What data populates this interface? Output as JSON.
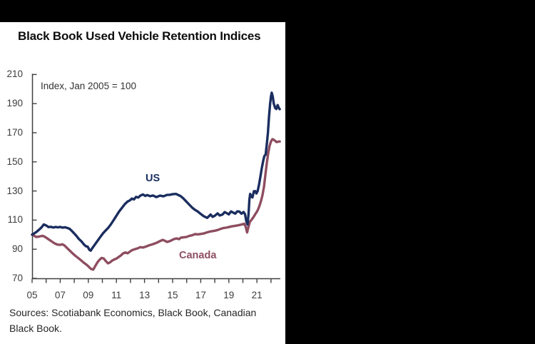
{
  "header": {
    "title": "Black Book Used Vehicle Retention Indices"
  },
  "footer": {
    "sources": "Sources: Scotiabank Economics, Black Book, Canadian Black Book."
  },
  "colors": {
    "us_line": "#1a2d5f",
    "canada_line": "#8e4d60",
    "axis": "#404040",
    "tick_text": "#3d3d3d"
  },
  "chart_data": {
    "type": "line",
    "title": "Black Book Used Vehicle Retention Indices",
    "note": "Index, Jan 2005 = 100",
    "xlabel": "",
    "ylabel": "",
    "ylim": [
      70,
      210
    ],
    "xlim_years": [
      2005,
      2022.7
    ],
    "grid": false,
    "legend_position": "inline-labels",
    "y_ticks": [
      70,
      90,
      110,
      130,
      150,
      170,
      190,
      210
    ],
    "x_tick_labels": [
      "05",
      "07",
      "09",
      "11",
      "13",
      "15",
      "17",
      "19",
      "21"
    ],
    "x_tick_years": [
      2005,
      2007,
      2009,
      2011,
      2013,
      2015,
      2017,
      2019,
      2021
    ],
    "x_minor_tick_years": [
      2005,
      2006,
      2007,
      2008,
      2009,
      2010,
      2011,
      2012,
      2013,
      2014,
      2015,
      2016,
      2017,
      2018,
      2019,
      2020,
      2021,
      2022
    ],
    "series": [
      {
        "name": "Canada",
        "color": "#8e4d60",
        "label_pos": {
          "x": 251,
          "y": 350
        },
        "points": [
          [
            2005.0,
            100
          ],
          [
            2005.15,
            99.2
          ],
          [
            2005.3,
            98.4
          ],
          [
            2005.45,
            98.6
          ],
          [
            2005.6,
            98.9
          ],
          [
            2005.75,
            99.2
          ],
          [
            2005.9,
            98.6
          ],
          [
            2006.05,
            97.6
          ],
          [
            2006.2,
            96.6
          ],
          [
            2006.4,
            95.3
          ],
          [
            2006.6,
            94.0
          ],
          [
            2006.8,
            93.2
          ],
          [
            2007.0,
            93.0
          ],
          [
            2007.15,
            93.4
          ],
          [
            2007.3,
            92.6
          ],
          [
            2007.45,
            91.2
          ],
          [
            2007.6,
            89.8
          ],
          [
            2007.75,
            88.4
          ],
          [
            2007.9,
            87.0
          ],
          [
            2008.1,
            85.3
          ],
          [
            2008.3,
            83.8
          ],
          [
            2008.5,
            82.2
          ],
          [
            2008.7,
            80.6
          ],
          [
            2008.9,
            79.2
          ],
          [
            2009.05,
            77.8
          ],
          [
            2009.2,
            76.4
          ],
          [
            2009.35,
            76.0
          ],
          [
            2009.5,
            78.5
          ],
          [
            2009.65,
            81.0
          ],
          [
            2009.8,
            82.8
          ],
          [
            2009.95,
            84.0
          ],
          [
            2010.1,
            83.6
          ],
          [
            2010.25,
            81.8
          ],
          [
            2010.4,
            80.3
          ],
          [
            2010.55,
            81.0
          ],
          [
            2010.7,
            82.2
          ],
          [
            2010.85,
            83.0
          ],
          [
            2011.0,
            83.6
          ],
          [
            2011.15,
            84.6
          ],
          [
            2011.3,
            85.6
          ],
          [
            2011.5,
            87.3
          ],
          [
            2011.65,
            87.8
          ],
          [
            2011.8,
            87.2
          ],
          [
            2011.95,
            88.3
          ],
          [
            2012.1,
            89.3
          ],
          [
            2012.3,
            90.0
          ],
          [
            2012.5,
            90.6
          ],
          [
            2012.7,
            91.4
          ],
          [
            2012.9,
            91.2
          ],
          [
            2013.1,
            91.8
          ],
          [
            2013.3,
            92.6
          ],
          [
            2013.5,
            93.2
          ],
          [
            2013.7,
            93.8
          ],
          [
            2013.9,
            94.6
          ],
          [
            2014.1,
            95.6
          ],
          [
            2014.3,
            96.4
          ],
          [
            2014.45,
            95.8
          ],
          [
            2014.6,
            95.0
          ],
          [
            2014.75,
            95.4
          ],
          [
            2014.9,
            96.0
          ],
          [
            2015.1,
            97.0
          ],
          [
            2015.3,
            97.4
          ],
          [
            2015.45,
            96.9
          ],
          [
            2015.6,
            98.0
          ],
          [
            2015.8,
            98.2
          ],
          [
            2016.0,
            98.5
          ],
          [
            2016.2,
            99.2
          ],
          [
            2016.4,
            99.6
          ],
          [
            2016.6,
            100.4
          ],
          [
            2016.8,
            100.2
          ],
          [
            2017.0,
            100.5
          ],
          [
            2017.2,
            100.8
          ],
          [
            2017.4,
            101.4
          ],
          [
            2017.6,
            102.0
          ],
          [
            2017.8,
            102.4
          ],
          [
            2018.0,
            102.7
          ],
          [
            2018.2,
            103.2
          ],
          [
            2018.4,
            103.9
          ],
          [
            2018.6,
            104.5
          ],
          [
            2018.8,
            104.8
          ],
          [
            2019.0,
            105.2
          ],
          [
            2019.2,
            105.7
          ],
          [
            2019.4,
            106.0
          ],
          [
            2019.6,
            106.3
          ],
          [
            2019.8,
            106.7
          ],
          [
            2019.95,
            107.1
          ],
          [
            2020.1,
            107.5
          ],
          [
            2020.2,
            105.5
          ],
          [
            2020.3,
            101.5
          ],
          [
            2020.4,
            105.5
          ],
          [
            2020.5,
            108.8
          ],
          [
            2020.62,
            110.3
          ],
          [
            2020.75,
            112.0
          ],
          [
            2020.88,
            114.0
          ],
          [
            2021.0,
            115.8
          ],
          [
            2021.1,
            117.8
          ],
          [
            2021.2,
            120.3
          ],
          [
            2021.3,
            123.5
          ],
          [
            2021.4,
            127.5
          ],
          [
            2021.5,
            133.0
          ],
          [
            2021.6,
            141.0
          ],
          [
            2021.7,
            149.0
          ],
          [
            2021.8,
            156.0
          ],
          [
            2021.9,
            161.0
          ],
          [
            2022.0,
            164.0
          ],
          [
            2022.1,
            165.6
          ],
          [
            2022.2,
            165.2
          ],
          [
            2022.3,
            164.4
          ],
          [
            2022.4,
            163.6
          ],
          [
            2022.5,
            163.8
          ],
          [
            2022.62,
            164.0
          ]
        ]
      },
      {
        "name": "US",
        "color": "#1a2d5f",
        "label_pos": {
          "x": 204,
          "y": 242
        },
        "points": [
          [
            2005.0,
            100
          ],
          [
            2005.17,
            101
          ],
          [
            2005.33,
            102
          ],
          [
            2005.5,
            103.5
          ],
          [
            2005.67,
            105
          ],
          [
            2005.83,
            107
          ],
          [
            2006.0,
            106.3
          ],
          [
            2006.17,
            105.2
          ],
          [
            2006.33,
            105.4
          ],
          [
            2006.5,
            104.9
          ],
          [
            2006.67,
            105.3
          ],
          [
            2006.83,
            105.0
          ],
          [
            2007.0,
            105.3
          ],
          [
            2007.17,
            104.8
          ],
          [
            2007.33,
            105.1
          ],
          [
            2007.5,
            104.6
          ],
          [
            2007.67,
            104.0
          ],
          [
            2007.83,
            102.5
          ],
          [
            2008.0,
            100.8
          ],
          [
            2008.17,
            99.0
          ],
          [
            2008.33,
            97.0
          ],
          [
            2008.5,
            95.5
          ],
          [
            2008.67,
            93.5
          ],
          [
            2008.83,
            92.0
          ],
          [
            2008.95,
            91.8
          ],
          [
            2009.08,
            89.5
          ],
          [
            2009.17,
            89.0
          ],
          [
            2009.3,
            91.0
          ],
          [
            2009.45,
            93.0
          ],
          [
            2009.6,
            95.0
          ],
          [
            2009.75,
            97.0
          ],
          [
            2009.9,
            99.0
          ],
          [
            2010.05,
            101.0
          ],
          [
            2010.2,
            102.5
          ],
          [
            2010.4,
            104.5
          ],
          [
            2010.6,
            107.0
          ],
          [
            2010.8,
            110.0
          ],
          [
            2011.0,
            113.0
          ],
          [
            2011.2,
            116.0
          ],
          [
            2011.4,
            118.5
          ],
          [
            2011.6,
            121.0
          ],
          [
            2011.8,
            122.8
          ],
          [
            2011.95,
            123.5
          ],
          [
            2012.1,
            124.8
          ],
          [
            2012.25,
            124.2
          ],
          [
            2012.4,
            126.0
          ],
          [
            2012.55,
            125.5
          ],
          [
            2012.7,
            126.8
          ],
          [
            2012.9,
            127.6
          ],
          [
            2013.05,
            126.6
          ],
          [
            2013.2,
            127.2
          ],
          [
            2013.4,
            126.4
          ],
          [
            2013.6,
            126.9
          ],
          [
            2013.85,
            125.8
          ],
          [
            2014.1,
            126.8
          ],
          [
            2014.35,
            126.3
          ],
          [
            2014.6,
            127.3
          ],
          [
            2014.8,
            127.4
          ],
          [
            2015.0,
            127.8
          ],
          [
            2015.25,
            128.0
          ],
          [
            2015.4,
            127.2
          ],
          [
            2015.55,
            126.6
          ],
          [
            2015.75,
            125.0
          ],
          [
            2016.0,
            122.5
          ],
          [
            2016.2,
            120.5
          ],
          [
            2016.4,
            118.5
          ],
          [
            2016.6,
            117.0
          ],
          [
            2016.8,
            115.8
          ],
          [
            2017.0,
            114.2
          ],
          [
            2017.2,
            112.8
          ],
          [
            2017.45,
            111.5
          ],
          [
            2017.6,
            112.8
          ],
          [
            2017.7,
            113.8
          ],
          [
            2017.85,
            112.2
          ],
          [
            2018.0,
            113.0
          ],
          [
            2018.2,
            114.6
          ],
          [
            2018.35,
            113.2
          ],
          [
            2018.55,
            113.8
          ],
          [
            2018.7,
            115.5
          ],
          [
            2018.85,
            114.8
          ],
          [
            2019.0,
            113.9
          ],
          [
            2019.15,
            116.0
          ],
          [
            2019.3,
            115.2
          ],
          [
            2019.45,
            114.4
          ],
          [
            2019.6,
            116.0
          ],
          [
            2019.75,
            115.9
          ],
          [
            2019.9,
            114.4
          ],
          [
            2020.05,
            115.6
          ],
          [
            2020.15,
            114.0
          ],
          [
            2020.25,
            109.0
          ],
          [
            2020.33,
            107.0
          ],
          [
            2020.4,
            114.0
          ],
          [
            2020.46,
            124.0
          ],
          [
            2020.52,
            128.0
          ],
          [
            2020.6,
            126.2
          ],
          [
            2020.68,
            125.6
          ],
          [
            2020.78,
            129.8
          ],
          [
            2020.88,
            129.9
          ],
          [
            2020.96,
            128.3
          ],
          [
            2021.05,
            130.0
          ],
          [
            2021.15,
            134.5
          ],
          [
            2021.25,
            140.0
          ],
          [
            2021.35,
            146.0
          ],
          [
            2021.45,
            151.0
          ],
          [
            2021.53,
            154.0
          ],
          [
            2021.62,
            155.0
          ],
          [
            2021.7,
            162.0
          ],
          [
            2021.78,
            170.0
          ],
          [
            2021.86,
            181.0
          ],
          [
            2021.94,
            190.0
          ],
          [
            2022.0,
            195.0
          ],
          [
            2022.05,
            197.5
          ],
          [
            2022.12,
            195.0
          ],
          [
            2022.2,
            190.0
          ],
          [
            2022.3,
            187.0
          ],
          [
            2022.38,
            186.3
          ],
          [
            2022.47,
            189.0
          ],
          [
            2022.55,
            187.2
          ],
          [
            2022.62,
            186.2
          ]
        ]
      }
    ]
  }
}
